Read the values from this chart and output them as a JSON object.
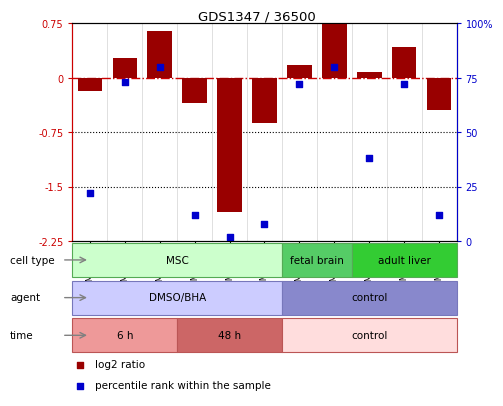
{
  "title": "GDS1347 / 36500",
  "samples": [
    "GSM60436",
    "GSM60437",
    "GSM60438",
    "GSM60440",
    "GSM60442",
    "GSM60444",
    "GSM60433",
    "GSM60434",
    "GSM60448",
    "GSM60450",
    "GSM60451"
  ],
  "log2_ratio": [
    -0.18,
    0.28,
    0.65,
    -0.35,
    -1.85,
    -0.62,
    0.18,
    0.75,
    0.08,
    0.42,
    -0.45
  ],
  "percentile_rank": [
    22,
    73,
    80,
    12,
    2,
    8,
    72,
    80,
    38,
    72,
    12
  ],
  "ylim_left": [
    -2.25,
    0.75
  ],
  "ylim_right": [
    0,
    100
  ],
  "yticks_left": [
    0.75,
    0,
    -0.75,
    -1.5,
    -2.25
  ],
  "yticks_right": [
    100,
    75,
    50,
    25,
    0
  ],
  "bar_color": "#990000",
  "dot_color": "#0000cc",
  "hline_color": "#cc0000",
  "cell_type_groups": [
    {
      "label": "MSC",
      "start": 0,
      "end": 6,
      "color": "#ccffcc",
      "border": "#55aa55"
    },
    {
      "label": "fetal brain",
      "start": 6,
      "end": 8,
      "color": "#55cc66",
      "border": "#55aa55"
    },
    {
      "label": "adult liver",
      "start": 8,
      "end": 11,
      "color": "#33cc33",
      "border": "#55aa55"
    }
  ],
  "agent_groups": [
    {
      "label": "DMSO/BHA",
      "start": 0,
      "end": 6,
      "color": "#ccccff",
      "border": "#7777bb"
    },
    {
      "label": "control",
      "start": 6,
      "end": 11,
      "color": "#8888cc",
      "border": "#7777bb"
    }
  ],
  "time_groups": [
    {
      "label": "6 h",
      "start": 0,
      "end": 3,
      "color": "#ee9999",
      "border": "#bb5555"
    },
    {
      "label": "48 h",
      "start": 3,
      "end": 6,
      "color": "#cc6666",
      "border": "#bb5555"
    },
    {
      "label": "control",
      "start": 6,
      "end": 11,
      "color": "#ffdddd",
      "border": "#bb5555"
    }
  ],
  "legend_items": [
    {
      "label": "log2 ratio",
      "color": "#990000"
    },
    {
      "label": "percentile rank within the sample",
      "color": "#0000cc"
    }
  ]
}
